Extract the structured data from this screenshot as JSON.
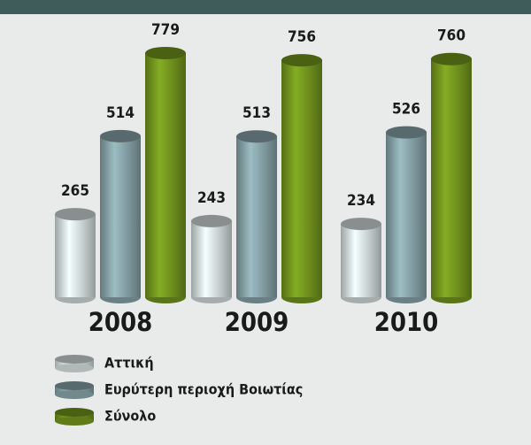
{
  "chart_data": {
    "type": "bar",
    "categories": [
      "2008",
      "2009",
      "2010"
    ],
    "series": [
      {
        "name": "Αττική",
        "color": "#c3cccc",
        "values": [
          265,
          243,
          234
        ]
      },
      {
        "name": "Ευρύτερη περιοχή Βοιωτίας",
        "color": "#7d979c",
        "values": [
          514,
          513,
          526
        ]
      },
      {
        "name": "Σύνολο",
        "color": "#6a8a1c",
        "values": [
          779,
          756,
          760
        ]
      }
    ]
  }
}
